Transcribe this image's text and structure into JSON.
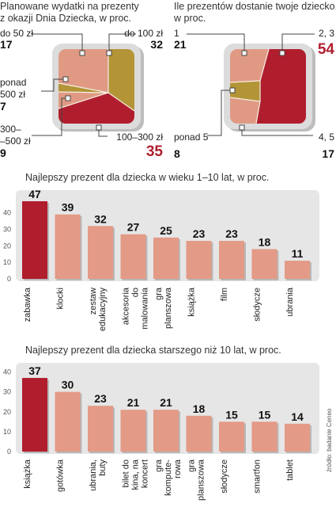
{
  "chart_data": [
    {
      "type": "pie",
      "title": "Planowane wydatki na prezenty z okazji Dnia Dziecka, w proc.",
      "title_lines": [
        "Planowane wydatki na prezenty",
        "z okazji Dnia Dziecka, w proc."
      ],
      "slices": [
        {
          "label": "do 50 zł",
          "label_lines": [
            "do 50 zł"
          ],
          "value": 17,
          "color": "#e09a84"
        },
        {
          "label": "do 100 zł",
          "label_lines": [
            "do 100 zł"
          ],
          "value": 32,
          "color": "#b39436"
        },
        {
          "label": "100–300 zł",
          "label_lines": [
            "100–300 zł"
          ],
          "value": 35,
          "color": "#b01e2e",
          "highlight": true
        },
        {
          "label": "300–500 zł",
          "label_lines": [
            "300–",
            "–500 zł"
          ],
          "value": 9,
          "color": "#e09a84"
        },
        {
          "label": "ponad 500 zł",
          "label_lines": [
            "ponad",
            "500 zł"
          ],
          "value": 7,
          "color": "#b39436"
        }
      ]
    },
    {
      "type": "pie",
      "title": "Ile prezentów dostanie twoje dziecko, w proc.",
      "title_lines": [
        "Ile prezentów dostanie twoje dziecko,",
        "w proc."
      ],
      "slices": [
        {
          "label": "1",
          "label_lines": [
            "1"
          ],
          "value": 21,
          "color": "#e09a84"
        },
        {
          "label": "2, 3",
          "label_lines": [
            "2, 3"
          ],
          "value": 54,
          "color": "#b01e2e",
          "highlight": true
        },
        {
          "label": "4, 5",
          "label_lines": [
            "4, 5"
          ],
          "value": 17,
          "color": "#e09a84"
        },
        {
          "label": "ponad 5",
          "label_lines": [
            "ponad 5"
          ],
          "value": 8,
          "color": "#b39436"
        }
      ]
    },
    {
      "type": "bar",
      "title": "Najlepszy prezent dla dziecka w wieku 1–10 lat, w proc.",
      "categories": [
        "zabawka",
        "klocki",
        "zestaw edukacyjny",
        "akcesoria do malowania",
        "gra planszowa",
        "książka",
        "film",
        "słodycze",
        "ubrania"
      ],
      "category_lines": [
        [
          "zabawka"
        ],
        [
          "klocki"
        ],
        [
          "zestaw",
          "edukacyjny"
        ],
        [
          "akcesoria",
          "do",
          "malowania"
        ],
        [
          "gra",
          "planszowa"
        ],
        [
          "książka"
        ],
        [
          "film"
        ],
        [
          "słodycze"
        ],
        [
          "ubrania"
        ]
      ],
      "values": [
        47,
        39,
        32,
        27,
        25,
        23,
        23,
        18,
        11
      ],
      "value_labels": [
        "47",
        "39",
        "32",
        "27",
        "25",
        "23",
        "23",
        "18",
        "11"
      ],
      "yticks": [
        0,
        10,
        20,
        30,
        40
      ],
      "ytick_labels": [
        "0",
        "10",
        "20",
        "30",
        "40"
      ],
      "ylim": [
        0,
        47
      ],
      "highlight_index": 0,
      "colors": {
        "highlight": "#b01e2e",
        "bar": "#e39a86"
      }
    },
    {
      "type": "bar",
      "title": "Najlepszy prezent dla dziecka starszego niż 10 lat, w proc.",
      "categories": [
        "książka",
        "gotówka",
        "ubrania, buty",
        "bilet do kina, na koncert",
        "gra komputerowa",
        "gra planszowa",
        "słodycze",
        "smartfon",
        "tablet"
      ],
      "category_lines": [
        [
          "książka"
        ],
        [
          "gotówka"
        ],
        [
          "ubrania,",
          "buty"
        ],
        [
          "bilet do",
          "kina, na",
          "koncert"
        ],
        [
          "gra",
          "kompute-",
          "rowa"
        ],
        [
          "gra",
          "planszowa"
        ],
        [
          "słodycze"
        ],
        [
          "smartfon"
        ],
        [
          "tablet"
        ]
      ],
      "values": [
        37,
        30,
        23,
        21,
        21,
        18,
        15,
        15,
        14
      ],
      "value_labels": [
        "37",
        "30",
        "23",
        "21",
        "21",
        "18",
        "15",
        "15",
        "14"
      ],
      "yticks": [
        0,
        10,
        20,
        30,
        40
      ],
      "ytick_labels": [
        "0",
        "10",
        "20",
        "30",
        "40"
      ],
      "ylim": [
        0,
        41
      ],
      "highlight_index": 0,
      "colors": {
        "highlight": "#b01e2e",
        "bar": "#e39a86"
      }
    }
  ],
  "source": "źródło: badanie Ceneo",
  "colors": {
    "panel": "#e6e6e6",
    "highlight": "#b01e2e",
    "salmon": "#e09a84",
    "olive": "#b39436"
  }
}
